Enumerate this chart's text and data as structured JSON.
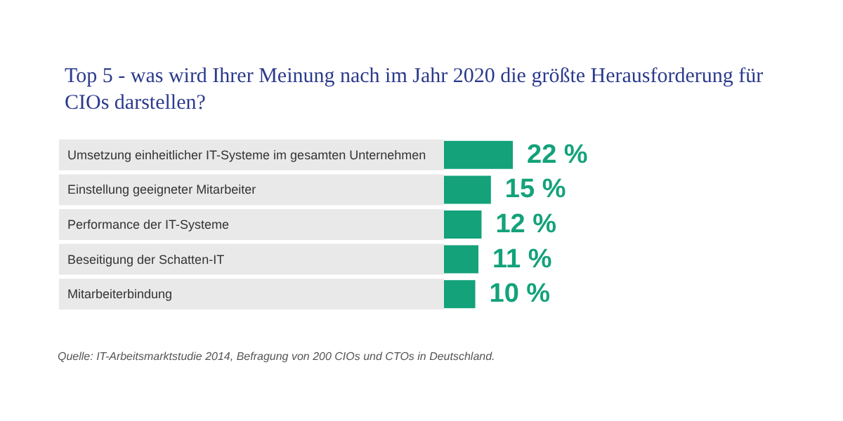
{
  "chart_data": {
    "type": "bar",
    "orientation": "horizontal",
    "title": "Top 5 - was wird Ihrer Meinung nach im Jahr 2020 die größte Herausforderung für CIOs darstellen?",
    "categories": [
      "Umsetzung einheitlicher IT-Systeme im gesamten Unternehmen",
      "Einstellung geeigneter Mitarbeiter",
      "Performance der IT-Systeme",
      "Beseitigung der Schatten-IT",
      "Mitarbeiterbindung"
    ],
    "values": [
      22,
      15,
      12,
      11,
      10
    ],
    "value_labels": [
      "22 %",
      "15 %",
      "12 %",
      "11 %",
      "10 %"
    ],
    "color": "#13a27a",
    "annotations": [
      "Quelle: IT-Arbeitsmarktstudie 2014, Befragung von 200 CIOs und CTOs in Deutschland."
    ]
  }
}
